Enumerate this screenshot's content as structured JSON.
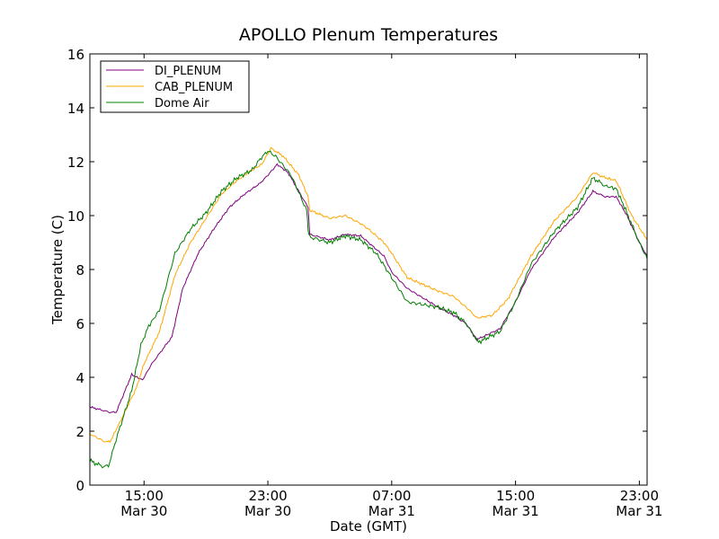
{
  "chart_data": {
    "type": "line",
    "title": "APOLLO Plenum Temperatures",
    "xlabel": "Date (GMT)",
    "ylabel": "Temperature (C)",
    "xlim": [
      11.5,
      47.5
    ],
    "ylim": [
      0,
      16
    ],
    "x_unit": "hours since Mar 30 00:00 GMT",
    "x_ticks": [
      {
        "value": 15,
        "line1": "15:00",
        "line2": "Mar 30"
      },
      {
        "value": 23,
        "line1": "23:00",
        "line2": "Mar 30"
      },
      {
        "value": 31,
        "line1": "07:00",
        "line2": "Mar 31"
      },
      {
        "value": 39,
        "line1": "15:00",
        "line2": "Mar 31"
      },
      {
        "value": 47,
        "line1": "23:00",
        "line2": "Mar 31"
      }
    ],
    "y_ticks": [
      0,
      2,
      4,
      6,
      8,
      10,
      12,
      14,
      16
    ],
    "grid": false,
    "legend_position": "top-left",
    "series": [
      {
        "name": "DI_PLENUM",
        "color": "#800080",
        "x": [
          11.5,
          12.8,
          13.2,
          14.2,
          14.9,
          15.5,
          16.8,
          17.5,
          18.5,
          19.5,
          20.5,
          21.5,
          22.5,
          23.0,
          23.6,
          24.3,
          25.6,
          25.7,
          27.0,
          28.0,
          29.0,
          29.5,
          30.5,
          31.0,
          32.0,
          34.0,
          35.0,
          35.8,
          36.5,
          38.0,
          39.0,
          40.0,
          41.5,
          43.0,
          44.0,
          44.8,
          45.5,
          46.2,
          47.0,
          47.5
        ],
        "y": [
          2.9,
          2.7,
          2.7,
          4.1,
          3.9,
          4.5,
          5.5,
          7.3,
          8.6,
          9.5,
          10.3,
          10.8,
          11.2,
          11.5,
          11.9,
          11.6,
          10.3,
          9.3,
          9.1,
          9.3,
          9.25,
          9.0,
          8.5,
          7.9,
          7.3,
          6.6,
          6.3,
          6.0,
          5.4,
          5.8,
          6.8,
          8.0,
          9.2,
          10.1,
          10.9,
          10.7,
          10.7,
          10.0,
          9.0,
          8.5
        ]
      },
      {
        "name": "CAB_PLENUM",
        "color": "#ffa500",
        "x": [
          11.5,
          12.5,
          12.8,
          13.5,
          14.5,
          15.0,
          16.0,
          17.0,
          18.0,
          19.0,
          20.0,
          21.0,
          22.0,
          22.6,
          23.2,
          24.0,
          25.0,
          25.6,
          25.7,
          27.0,
          28.0,
          29.0,
          29.5,
          30.5,
          31.0,
          32.0,
          34.0,
          35.0,
          36.0,
          36.5,
          37.5,
          38.5,
          40.0,
          41.5,
          43.0,
          44.0,
          44.8,
          45.5,
          46.5,
          47.5
        ],
        "y": [
          1.9,
          1.6,
          1.6,
          2.4,
          3.6,
          4.5,
          5.7,
          7.8,
          9.0,
          9.9,
          10.8,
          11.3,
          11.7,
          11.9,
          12.5,
          12.2,
          11.5,
          10.7,
          10.2,
          9.9,
          10.0,
          9.7,
          9.5,
          9.0,
          8.6,
          7.7,
          7.2,
          7.0,
          6.5,
          6.2,
          6.3,
          6.9,
          8.5,
          9.8,
          10.7,
          11.6,
          11.4,
          11.3,
          10.0,
          9.1
        ]
      },
      {
        "name": "Dome Air",
        "color": "#007f00",
        "x": [
          11.5,
          12.3,
          12.7,
          13.2,
          14.2,
          14.8,
          15.3,
          16.0,
          17.0,
          18.0,
          19.0,
          20.0,
          21.0,
          22.0,
          22.5,
          23.0,
          23.5,
          24.5,
          25.5,
          25.6,
          25.7,
          27.0,
          28.0,
          29.0,
          30.0,
          31.0,
          32.0,
          34.0,
          35.0,
          35.8,
          36.6,
          38.0,
          39.0,
          40.0,
          41.5,
          43.0,
          44.0,
          44.8,
          45.5,
          46.2,
          47.0,
          47.5
        ],
        "y": [
          0.9,
          0.7,
          0.7,
          1.7,
          3.5,
          5.2,
          5.9,
          6.5,
          8.6,
          9.5,
          10.1,
          10.9,
          11.4,
          11.7,
          12.1,
          12.4,
          12.2,
          11.5,
          10.2,
          9.5,
          9.2,
          9.0,
          9.25,
          9.1,
          8.6,
          7.7,
          6.8,
          6.6,
          6.4,
          6.0,
          5.3,
          5.7,
          6.8,
          8.2,
          9.4,
          10.3,
          11.4,
          11.1,
          11.0,
          10.1,
          9.0,
          8.4
        ]
      }
    ]
  }
}
